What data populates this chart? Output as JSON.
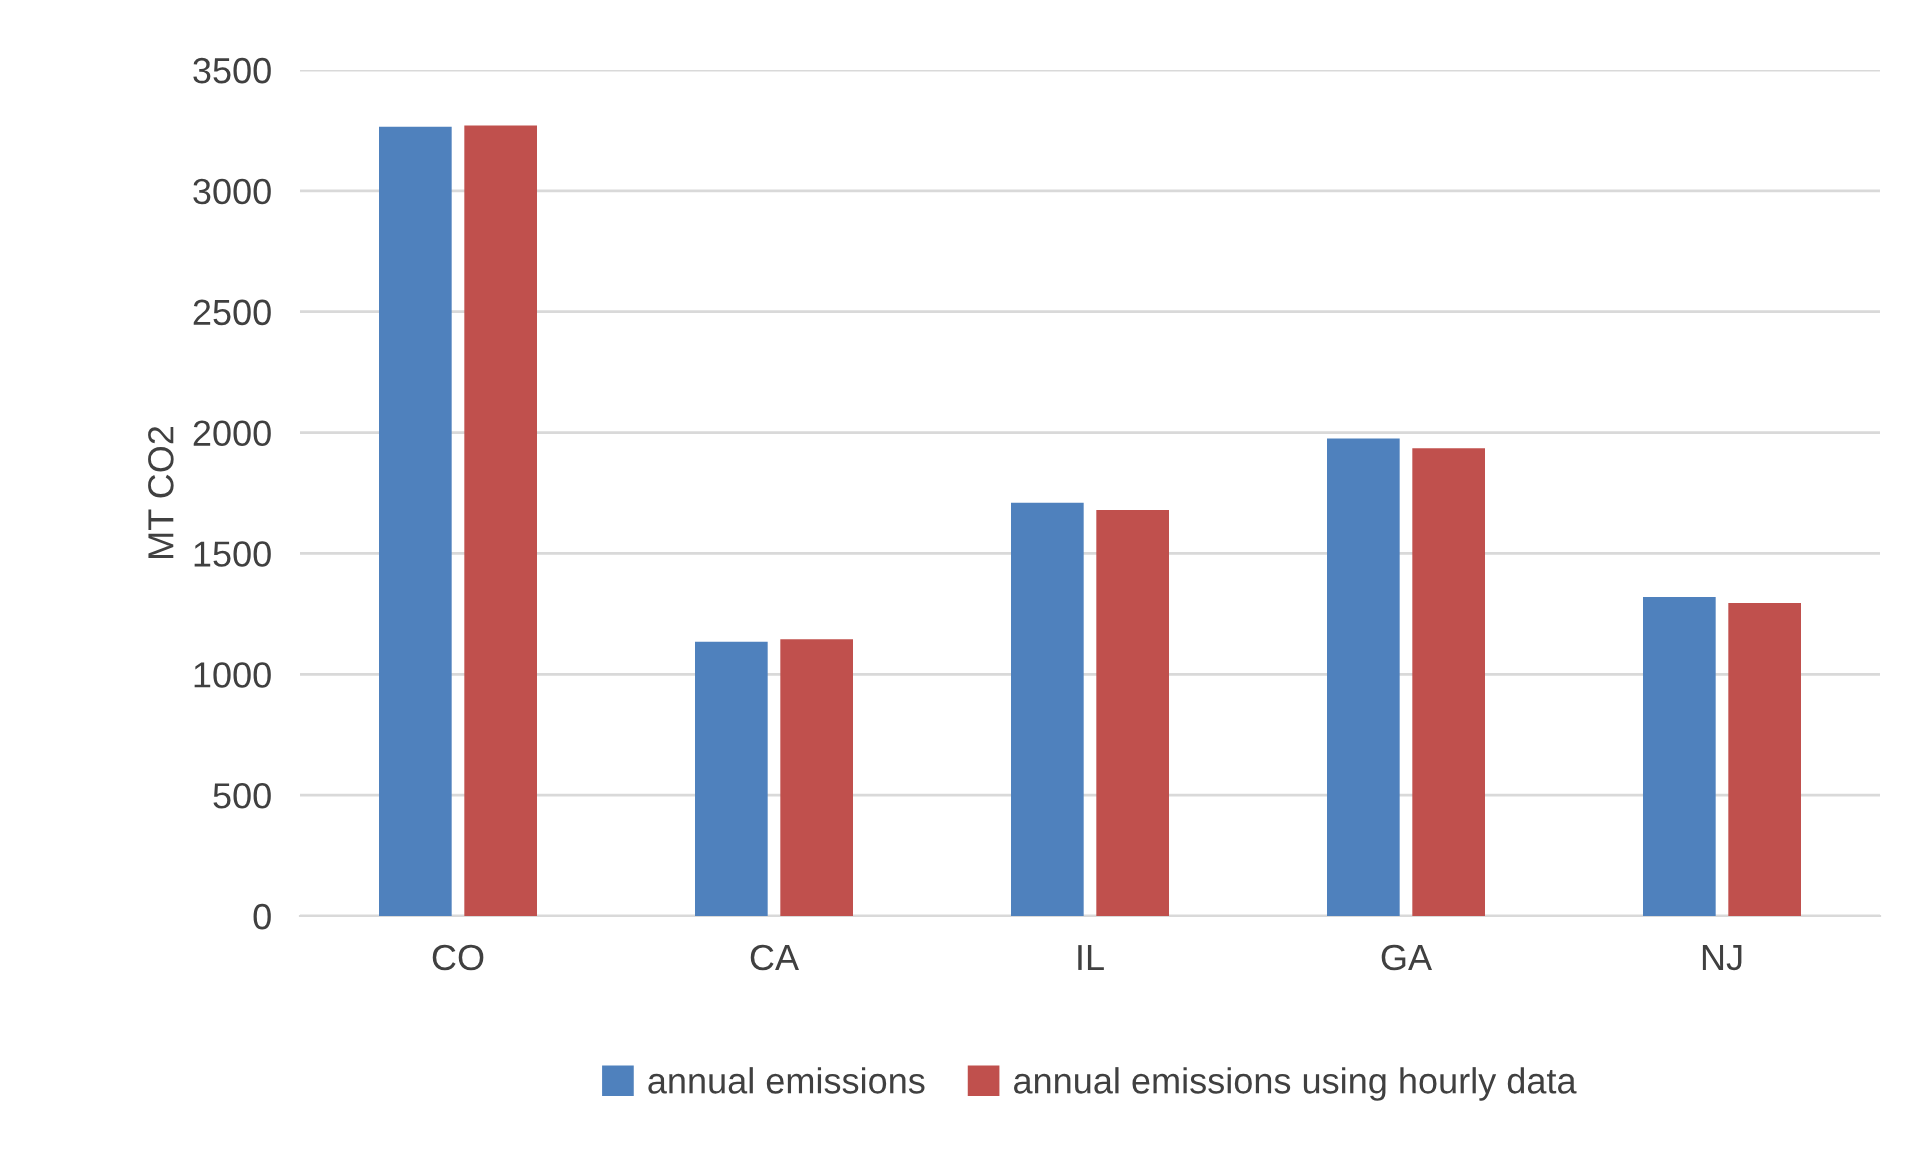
{
  "chart_data": {
    "type": "bar",
    "ylabel": "MT CO2",
    "categories": [
      "CO",
      "CA",
      "IL",
      "GA",
      "NJ"
    ],
    "series": [
      {
        "name": "annual emissions",
        "color": "#4f81bd",
        "values": [
          3265,
          1135,
          1710,
          1975,
          1320
        ]
      },
      {
        "name": "annual emissions using hourly data",
        "color": "#c0504d",
        "values": [
          3270,
          1145,
          1680,
          1935,
          1295
        ]
      }
    ],
    "ylim": [
      0,
      3500
    ],
    "yticks": [
      0,
      500,
      1000,
      1500,
      2000,
      2500,
      3000,
      3500
    ],
    "grid": "y",
    "legend": "bottom"
  }
}
